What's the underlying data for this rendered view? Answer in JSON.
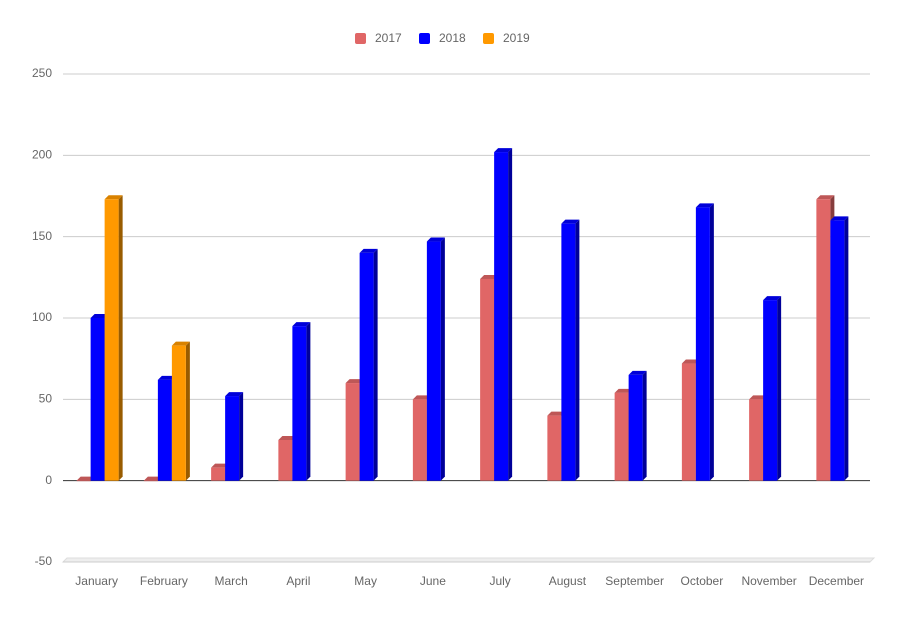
{
  "chart_data": {
    "type": "bar",
    "categories": [
      "January",
      "February",
      "March",
      "April",
      "May",
      "June",
      "July",
      "August",
      "September",
      "October",
      "November",
      "December"
    ],
    "series": [
      {
        "name": "2017",
        "color": "#e06666",
        "values": [
          0,
          0,
          8,
          25,
          60,
          50,
          124,
          40,
          54,
          72,
          50,
          173
        ]
      },
      {
        "name": "2018",
        "color": "#0000ff",
        "values": [
          100,
          62,
          52,
          95,
          140,
          147,
          202,
          158,
          65,
          168,
          111,
          160
        ]
      },
      {
        "name": "2019",
        "color": "#ff9900",
        "values": [
          173,
          83,
          null,
          null,
          null,
          null,
          null,
          null,
          null,
          null,
          null,
          null
        ]
      }
    ],
    "ylim": [
      -50,
      250
    ],
    "yticks": [
      -50,
      0,
      50,
      100,
      150,
      200,
      250
    ],
    "grid": true,
    "legend": "top"
  }
}
